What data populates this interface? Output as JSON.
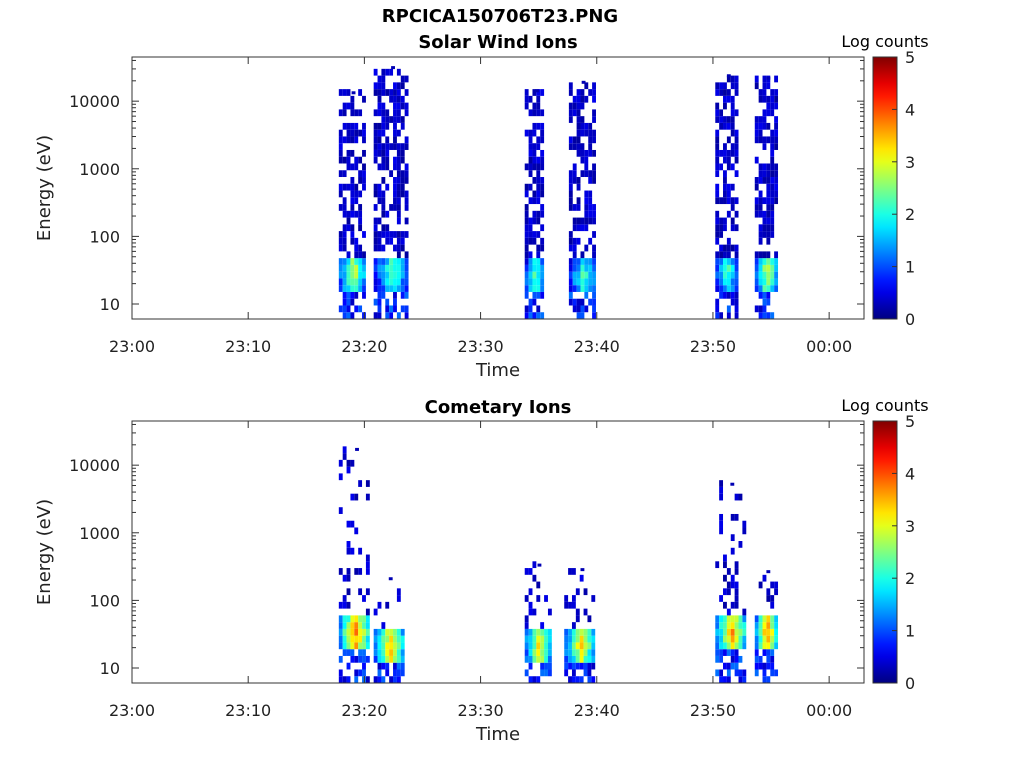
{
  "page_title": "RPCICA150706T23.PNG",
  "chart_data": [
    {
      "type": "heatmap",
      "title": "Solar Wind Ions",
      "xlabel": "Time",
      "ylabel": "Energy (eV)",
      "x_ticks": [
        "23:00",
        "23:10",
        "23:20",
        "23:30",
        "23:40",
        "23:50",
        "00:00"
      ],
      "x_tick_minutes": [
        0,
        10,
        20,
        30,
        40,
        50,
        60
      ],
      "xlim_minutes": [
        0,
        63
      ],
      "y_scale": "log",
      "y_ticks": [
        "10",
        "100",
        "1000",
        "10000"
      ],
      "ylim": [
        6,
        45000
      ],
      "colorbar": {
        "label": "Log counts",
        "range": [
          0,
          5
        ],
        "ticks": [
          "0",
          "1",
          "2",
          "3",
          "4",
          "5"
        ],
        "colormap": "jet"
      },
      "bursts": [
        {
          "start_min": 17.8,
          "end_min": 20.0,
          "peak_log_counts": 3.0,
          "peak_energy_eV": 30,
          "max_energy_eV": 14000
        },
        {
          "start_min": 20.8,
          "end_min": 23.8,
          "peak_log_counts": 2.4,
          "peak_energy_eV": 30,
          "max_energy_eV": 33000
        },
        {
          "start_min": 33.8,
          "end_min": 35.6,
          "peak_log_counts": 2.5,
          "peak_energy_eV": 25,
          "max_energy_eV": 15000
        },
        {
          "start_min": 37.6,
          "end_min": 39.8,
          "peak_log_counts": 2.3,
          "peak_energy_eV": 25,
          "max_energy_eV": 20000
        },
        {
          "start_min": 50.2,
          "end_min": 52.2,
          "peak_log_counts": 2.3,
          "peak_energy_eV": 30,
          "max_energy_eV": 25000
        },
        {
          "start_min": 53.6,
          "end_min": 55.6,
          "peak_log_counts": 3.0,
          "peak_energy_eV": 30,
          "max_energy_eV": 23000
        }
      ]
    },
    {
      "type": "heatmap",
      "title": "Cometary Ions",
      "xlabel": "Time",
      "ylabel": "Energy (eV)",
      "x_ticks": [
        "23:00",
        "23:10",
        "23:20",
        "23:30",
        "23:40",
        "23:50",
        "00:00"
      ],
      "x_tick_minutes": [
        0,
        10,
        20,
        30,
        40,
        50,
        60
      ],
      "xlim_minutes": [
        0,
        63
      ],
      "y_scale": "log",
      "y_ticks": [
        "10",
        "100",
        "1000",
        "10000"
      ],
      "ylim": [
        6,
        45000
      ],
      "colorbar": {
        "label": "Log counts",
        "range": [
          0,
          5
        ],
        "ticks": [
          "0",
          "1",
          "2",
          "3",
          "4",
          "5"
        ],
        "colormap": "jet"
      },
      "bursts": [
        {
          "start_min": 17.8,
          "end_min": 20.6,
          "peak_log_counts": 3.8,
          "peak_energy_eV": 33,
          "max_energy_eV": 18000
        },
        {
          "start_min": 20.8,
          "end_min": 23.4,
          "peak_log_counts": 3.5,
          "peak_energy_eV": 22,
          "max_energy_eV": 220
        },
        {
          "start_min": 33.8,
          "end_min": 36.0,
          "peak_log_counts": 3.3,
          "peak_energy_eV": 22,
          "max_energy_eV": 350
        },
        {
          "start_min": 37.2,
          "end_min": 40.0,
          "peak_log_counts": 3.3,
          "peak_energy_eV": 22,
          "max_energy_eV": 300
        },
        {
          "start_min": 50.2,
          "end_min": 52.8,
          "peak_log_counts": 3.6,
          "peak_energy_eV": 33,
          "max_energy_eV": 5500
        },
        {
          "start_min": 53.6,
          "end_min": 55.6,
          "peak_log_counts": 3.8,
          "peak_energy_eV": 33,
          "max_energy_eV": 280
        }
      ]
    }
  ]
}
